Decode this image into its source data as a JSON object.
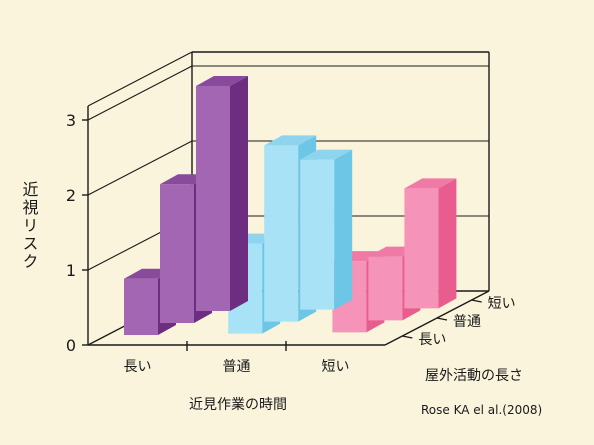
{
  "chart_data": {
    "type": "bar",
    "ylabel": "近視リスク",
    "xlabel": "近見作業の時間",
    "zlabel": "屋外活動の長さ",
    "categories": [
      "長い",
      "普通",
      "短い"
    ],
    "depth_categories": [
      "長い",
      "普通",
      "短い"
    ],
    "yticks": [
      "0",
      "1",
      "2",
      "3"
    ],
    "ylim": [
      0,
      3
    ],
    "series": [
      {
        "group": "長い",
        "values": [
          0.75,
          1.85,
          3.0
        ],
        "colors": {
          "front": "#a266b2",
          "side": "#6d2d80",
          "top": "#8a4a9c"
        }
      },
      {
        "group": "普通",
        "values": [
          1.2,
          2.35,
          2.0
        ],
        "colors": {
          "front": "#a8e2f6",
          "side": "#6dc6e6",
          "top": "#8fd4ee"
        }
      },
      {
        "group": "短い",
        "values": [
          0.95,
          0.85,
          1.6
        ],
        "colors": {
          "front": "#f594b8",
          "side": "#e85c8e",
          "top": "#f07aa6"
        }
      }
    ],
    "grid": true,
    "source": "Rose KA el al.(2008)"
  }
}
